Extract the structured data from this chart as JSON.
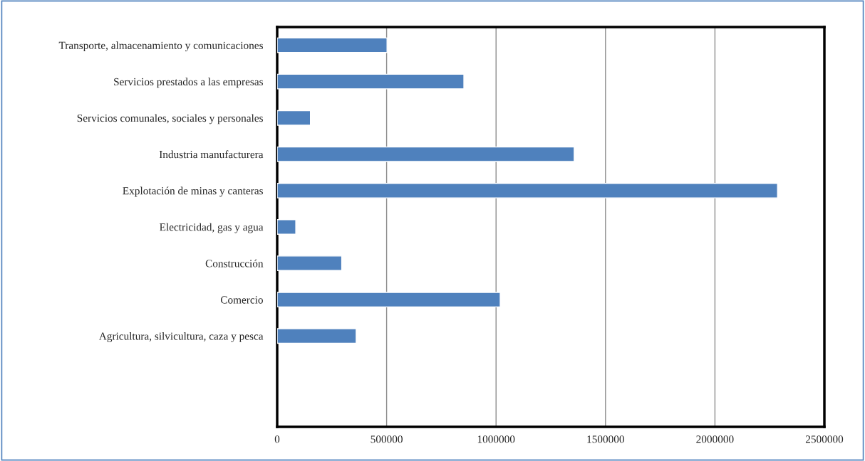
{
  "chart_data": {
    "type": "bar",
    "orientation": "horizontal",
    "categories": [
      "Transporte, almacenamiento y comunicaciones",
      "Servicios prestados a las empresas",
      "Servicios comunales, sociales y personales",
      "Industria manufacturera",
      "Explotación de minas y canteras",
      "Electricidad, gas y agua",
      "Construcción",
      "Comercio",
      "Agricultura, silvicultura, caza y pesca",
      null,
      null
    ],
    "values": [
      502000,
      853000,
      152000,
      1357000,
      2286000,
      85000,
      295000,
      1019000,
      361000,
      null,
      null
    ],
    "color": "#4f81bd",
    "xlim": [
      0,
      2500000
    ],
    "xticks": [
      0,
      500000,
      1000000,
      1500000,
      2000000,
      2500000
    ],
    "grid": "x"
  }
}
